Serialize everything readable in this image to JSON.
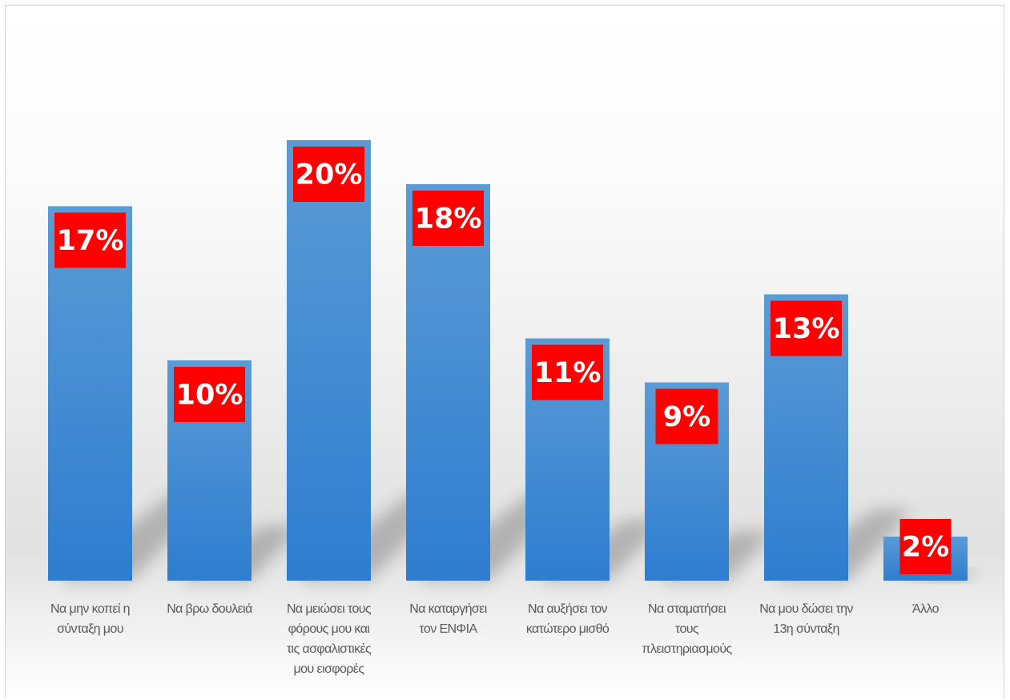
{
  "chart_data": {
    "type": "bar",
    "categories": [
      [
        "Να μην κοπεί η",
        "σύνταξη μου"
      ],
      [
        "Να βρω δουλειά"
      ],
      [
        "Να μειώσει τους",
        "φόρους μου και",
        "τις ασφαλιστικές",
        "μου εισφορές"
      ],
      [
        "Να καταργήσει",
        "τον ΕΝΦΙΑ"
      ],
      [
        "Να αυξήσει τον",
        "κατώτερο μισθό"
      ],
      [
        "Να σταματήσει",
        "τους",
        "πλειστηριασμούς"
      ],
      [
        "Να μου δώσει την",
        "13η σύνταξη"
      ],
      [
        "Άλλο"
      ]
    ],
    "values": [
      17,
      10,
      20,
      18,
      11,
      9,
      13,
      2
    ],
    "value_labels": [
      "17%",
      "10%",
      "20%",
      "18%",
      "11%",
      "9%",
      "13%",
      "2%"
    ],
    "ylim": [
      0,
      20
    ],
    "grid": false,
    "legend": "none",
    "colors": {
      "bar_top": "#5b9bd5",
      "bar_bottom": "#2e7dd0",
      "label_bg": "#ff0000",
      "label_text": "#ffffff",
      "category_text": "#595959"
    }
  }
}
